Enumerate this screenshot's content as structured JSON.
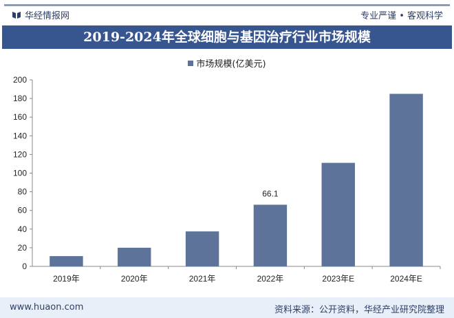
{
  "header": {
    "brand": "华经情报网",
    "slogan": "专业严谨 • 客观科学",
    "title": "2019-2024年全球细胞与基因治疗行业市场规模"
  },
  "footer": {
    "url": "www.huaon.com",
    "source": "资料来源：公开资料，华经产业研究院整理"
  },
  "chart_data": {
    "type": "bar",
    "title": "2019-2024年全球细胞与基因治疗行业市场规模",
    "categories": [
      "2019年",
      "2020年",
      "2021年",
      "2022年",
      "2023年E",
      "2024年E"
    ],
    "series": [
      {
        "name": "市场规模(亿美元)",
        "values": [
          11,
          20,
          37.5,
          66.1,
          111,
          185
        ],
        "color": "#5d7399"
      }
    ],
    "data_labels": [
      null,
      null,
      null,
      "66.1",
      null,
      null
    ],
    "ylim": [
      0,
      200
    ],
    "yticks": [
      0,
      20,
      40,
      60,
      80,
      100,
      120,
      140,
      160,
      180,
      200
    ],
    "grid": false,
    "legend": "top-center"
  }
}
